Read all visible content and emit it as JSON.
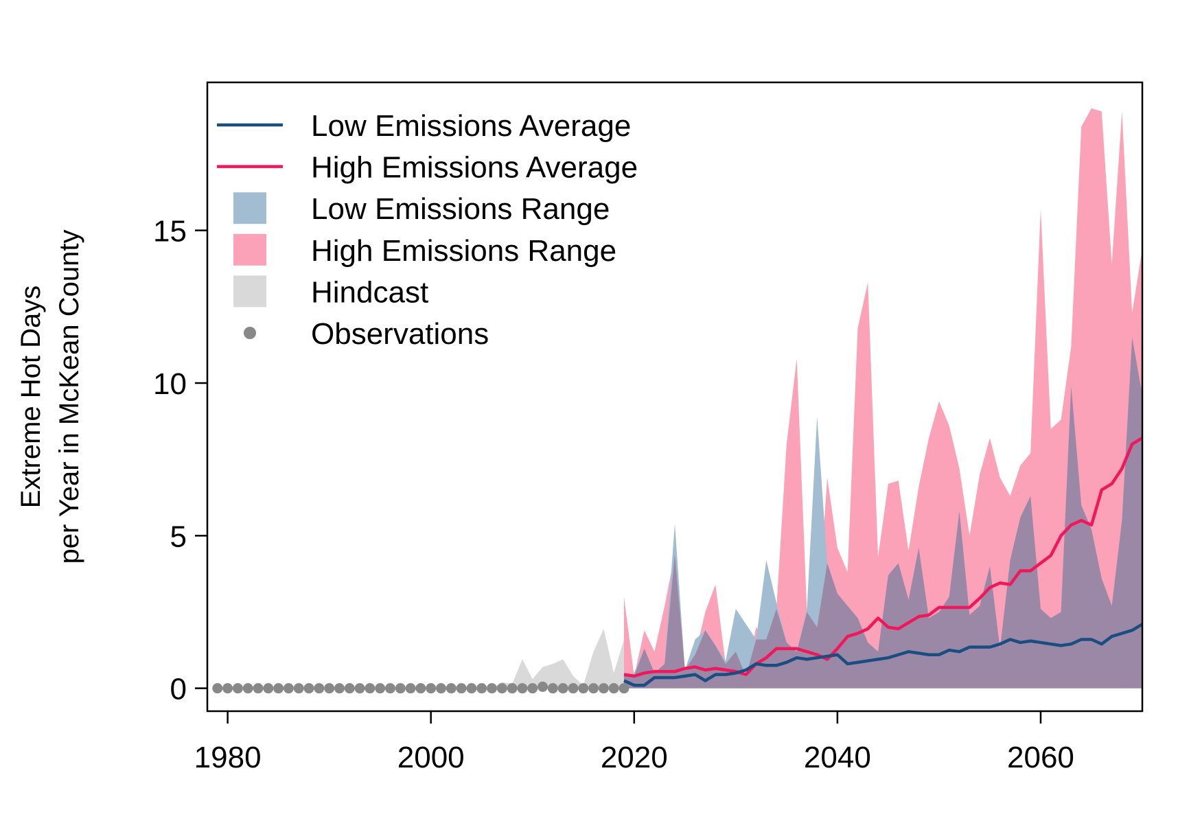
{
  "chart_data": {
    "type": "area",
    "xlim": [
      1978,
      2070
    ],
    "ylim": [
      -0.75,
      19.85
    ],
    "grid": false,
    "legend_position": "top-left",
    "ylabel_lines": [
      "Extreme Hot Days",
      "per Year in McKean County"
    ],
    "x_ticks": [
      1980,
      2000,
      2020,
      2040,
      2060
    ],
    "x_tick_labels": [
      "1980",
      "2000",
      "2020",
      "2040",
      "2060"
    ],
    "y_ticks": [
      0,
      5,
      10,
      15
    ],
    "y_tick_labels": [
      "0",
      "5",
      "10",
      "15"
    ],
    "colors": {
      "low_avg": "#1a4d80",
      "high_avg": "#f0185a",
      "low_range": "#a2bcd1",
      "high_range": "#fba2b8",
      "overlap": "#9b88a6",
      "hindcast": "#d9d9d9",
      "observations": "#888888"
    },
    "legend": [
      {
        "key": "low_avg",
        "label": "Low Emissions Average",
        "symbol": "line"
      },
      {
        "key": "high_avg",
        "label": "High Emissions Average",
        "symbol": "line"
      },
      {
        "key": "low_range",
        "label": "Low Emissions Range",
        "symbol": "box"
      },
      {
        "key": "high_range",
        "label": "High Emissions Range",
        "symbol": "box"
      },
      {
        "key": "hindcast",
        "label": "Hindcast",
        "symbol": "box"
      },
      {
        "key": "observations",
        "label": "Observations",
        "symbol": "point"
      }
    ],
    "observations": {
      "x": [
        1979,
        1980,
        1981,
        1982,
        1983,
        1984,
        1985,
        1986,
        1987,
        1988,
        1989,
        1990,
        1991,
        1992,
        1993,
        1994,
        1995,
        1996,
        1997,
        1998,
        1999,
        2000,
        2001,
        2002,
        2003,
        2004,
        2005,
        2006,
        2007,
        2008,
        2009,
        2010,
        2011,
        2012,
        2013,
        2014,
        2015,
        2016,
        2017,
        2018,
        2019
      ],
      "y": [
        0,
        0,
        0,
        0,
        0,
        0,
        0,
        0,
        0,
        0,
        0,
        0,
        0,
        0,
        0,
        0,
        0,
        0,
        0,
        0,
        0,
        0,
        0,
        0,
        0,
        0,
        0,
        0,
        0,
        0,
        0,
        0,
        0.05,
        0,
        0,
        0,
        0,
        0,
        0,
        0,
        0
      ]
    },
    "hindcast": {
      "x": [
        2006,
        2007,
        2008,
        2009,
        2010,
        2011,
        2012,
        2013,
        2014,
        2015,
        2016,
        2017,
        2018,
        2019
      ],
      "y": [
        0,
        0.2,
        0.15,
        0.95,
        0.3,
        0.7,
        0.8,
        0.95,
        0.4,
        0.1,
        1.2,
        1.95,
        0.5,
        1.6
      ]
    },
    "low_range": {
      "x": [
        2019,
        2020,
        2021,
        2022,
        2023,
        2024,
        2025,
        2026,
        2027,
        2028,
        2029,
        2030,
        2031,
        2032,
        2033,
        2034,
        2035,
        2036,
        2037,
        2038,
        2039,
        2040,
        2041,
        2042,
        2043,
        2044,
        2045,
        2046,
        2047,
        2048,
        2049,
        2050,
        2051,
        2052,
        2053,
        2054,
        2055,
        2056,
        2057,
        2058,
        2059,
        2060,
        2061,
        2062,
        2063,
        2064,
        2065,
        2066,
        2067,
        2068,
        2069,
        2070
      ],
      "y": [
        0.4,
        0.5,
        1.3,
        0.5,
        0.8,
        5.4,
        0.6,
        1.6,
        1.9,
        1.4,
        0.9,
        2.6,
        2.1,
        1.6,
        4.2,
        2.8,
        1.5,
        1.2,
        2.6,
        8.9,
        4.1,
        3.1,
        2.7,
        2.3,
        1.5,
        1.2,
        3.7,
        4.1,
        2.9,
        4.6,
        2.3,
        2.5,
        3.0,
        5.8,
        2.4,
        2.7,
        4.0,
        1.3,
        4.2,
        5.6,
        6.3,
        2.6,
        2.3,
        2.5,
        9.9,
        6.0,
        5.2,
        3.6,
        2.7,
        5.5,
        11.5,
        9.6
      ]
    },
    "high_range": {
      "x": [
        2019,
        2020,
        2021,
        2022,
        2023,
        2024,
        2025,
        2026,
        2027,
        2028,
        2029,
        2030,
        2031,
        2032,
        2033,
        2034,
        2035,
        2036,
        2037,
        2038,
        2039,
        2040,
        2041,
        2042,
        2043,
        2044,
        2045,
        2046,
        2047,
        2048,
        2049,
        2050,
        2051,
        2052,
        2053,
        2054,
        2055,
        2056,
        2057,
        2058,
        2059,
        2060,
        2061,
        2062,
        2063,
        2064,
        2065,
        2066,
        2067,
        2068,
        2069,
        2070
      ],
      "y": [
        3.0,
        0.4,
        1.9,
        1.2,
        2.7,
        4.4,
        0.6,
        1.1,
        2.5,
        3.4,
        0.8,
        1.2,
        0.4,
        2.0,
        1.6,
        2.6,
        8.0,
        10.8,
        2.5,
        2.0,
        6.9,
        4.6,
        3.8,
        11.8,
        13.3,
        4.3,
        6.7,
        6.8,
        4.5,
        6.6,
        8.2,
        9.4,
        8.6,
        7.2,
        5.0,
        7.0,
        8.2,
        6.9,
        6.3,
        7.3,
        7.7,
        15.7,
        8.5,
        8.8,
        11.2,
        18.4,
        19.0,
        18.9,
        13.9,
        18.9,
        12.3,
        14.4
      ]
    },
    "low_avg": {
      "x": [
        2019,
        2020,
        2021,
        2022,
        2023,
        2024,
        2025,
        2026,
        2027,
        2028,
        2029,
        2030,
        2031,
        2032,
        2033,
        2034,
        2035,
        2036,
        2037,
        2038,
        2039,
        2040,
        2041,
        2042,
        2043,
        2044,
        2045,
        2046,
        2047,
        2048,
        2049,
        2050,
        2051,
        2052,
        2053,
        2054,
        2055,
        2056,
        2057,
        2058,
        2059,
        2060,
        2061,
        2062,
        2063,
        2064,
        2065,
        2066,
        2067,
        2068,
        2069,
        2070
      ],
      "y": [
        0.25,
        0.1,
        0.1,
        0.35,
        0.35,
        0.35,
        0.4,
        0.45,
        0.25,
        0.45,
        0.45,
        0.5,
        0.6,
        0.8,
        0.75,
        0.75,
        0.85,
        1.0,
        0.95,
        1.0,
        1.05,
        1.1,
        0.8,
        0.85,
        0.9,
        0.95,
        1.0,
        1.1,
        1.2,
        1.15,
        1.1,
        1.1,
        1.25,
        1.2,
        1.35,
        1.35,
        1.35,
        1.45,
        1.6,
        1.5,
        1.55,
        1.5,
        1.45,
        1.4,
        1.45,
        1.6,
        1.6,
        1.45,
        1.7,
        1.8,
        1.9,
        2.1
      ]
    },
    "high_avg": {
      "x": [
        2019,
        2020,
        2021,
        2022,
        2023,
        2024,
        2025,
        2026,
        2027,
        2028,
        2029,
        2030,
        2031,
        2032,
        2033,
        2034,
        2035,
        2036,
        2037,
        2038,
        2039,
        2040,
        2041,
        2042,
        2043,
        2044,
        2045,
        2046,
        2047,
        2048,
        2049,
        2050,
        2051,
        2052,
        2053,
        2054,
        2055,
        2056,
        2057,
        2058,
        2059,
        2060,
        2061,
        2062,
        2063,
        2064,
        2065,
        2066,
        2067,
        2068,
        2069,
        2070
      ],
      "y": [
        0.45,
        0.4,
        0.5,
        0.55,
        0.55,
        0.55,
        0.65,
        0.7,
        0.6,
        0.65,
        0.6,
        0.55,
        0.45,
        0.8,
        1.0,
        1.3,
        1.3,
        1.3,
        1.2,
        1.1,
        0.95,
        1.3,
        1.7,
        1.8,
        1.95,
        2.3,
        2.0,
        1.95,
        2.15,
        2.35,
        2.4,
        2.65,
        2.65,
        2.65,
        2.65,
        2.95,
        3.3,
        3.45,
        3.4,
        3.85,
        3.85,
        4.1,
        4.35,
        5.0,
        5.35,
        5.5,
        5.35,
        6.5,
        6.7,
        7.2,
        8.0,
        8.2
      ]
    }
  }
}
